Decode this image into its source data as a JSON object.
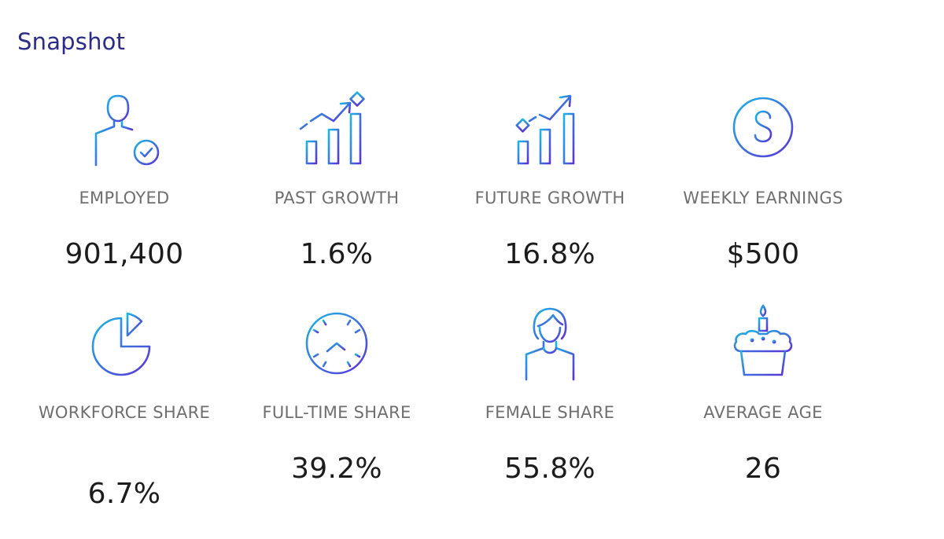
{
  "title": "Snapshot",
  "stats": [
    {
      "icon": "person-check-icon",
      "label": "EMPLOYED",
      "value": "901,400"
    },
    {
      "icon": "bar-chart-growth-icon",
      "label": "PAST GROWTH",
      "value": "1.6%"
    },
    {
      "icon": "bar-chart-future-growth-icon",
      "label": "FUTURE GROWTH",
      "value": "16.8%"
    },
    {
      "icon": "dollar-coin-icon",
      "label": "WEEKLY EARNINGS",
      "value": "$500"
    },
    {
      "icon": "pie-chart-icon",
      "label": "WORKFORCE SHARE",
      "value": "6.7%"
    },
    {
      "icon": "clock-icon",
      "label": "FULL-TIME SHARE",
      "value": "39.2%"
    },
    {
      "icon": "female-person-icon",
      "label": "FEMALE SHARE",
      "value": "55.8%"
    },
    {
      "icon": "birthday-cupcake-icon",
      "label": "AVERAGE AGE",
      "value": "26"
    }
  ],
  "colors": {
    "title": "#2b2c8a",
    "icon_gradient_start": "#19b7e8",
    "icon_gradient_end": "#5b33d6",
    "label": "#6f6f6f",
    "value": "#1c1c1c"
  }
}
